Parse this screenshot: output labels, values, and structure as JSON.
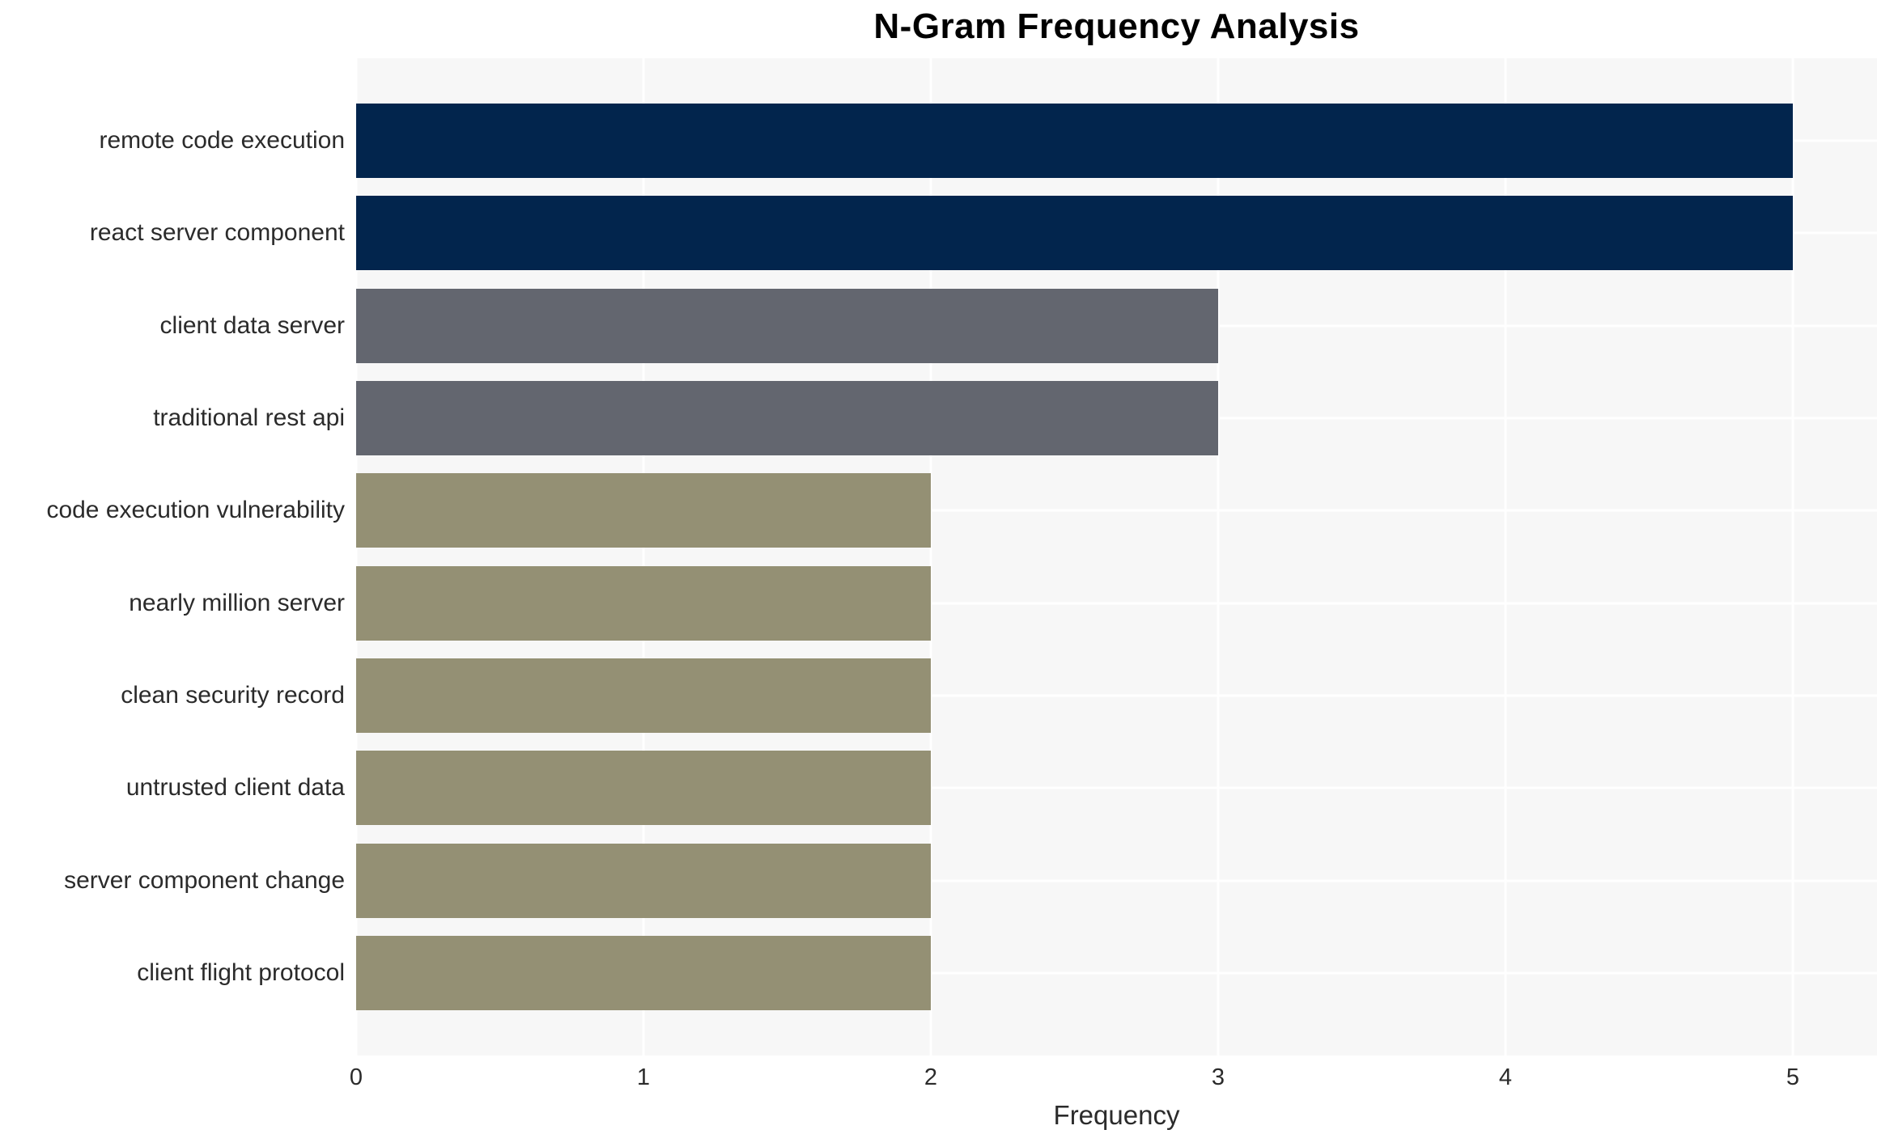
{
  "chart_data": {
    "type": "bar",
    "orientation": "horizontal",
    "title": "N-Gram Frequency Analysis",
    "xlabel": "Frequency",
    "ylabel": "",
    "categories": [
      "remote code execution",
      "react server component",
      "client data server",
      "traditional rest api",
      "code execution vulnerability",
      "nearly million server",
      "clean security record",
      "untrusted client data",
      "server component change",
      "client flight protocol"
    ],
    "values": [
      5,
      5,
      3,
      3,
      2,
      2,
      2,
      2,
      2,
      2
    ],
    "bar_colors": [
      "#02254d",
      "#02254d",
      "#63666f",
      "#63666f",
      "#949074",
      "#949074",
      "#949074",
      "#949074",
      "#949074",
      "#949074"
    ],
    "color_by_value": {
      "5": "#02254d",
      "3": "#63666f",
      "2": "#949074"
    },
    "xlim": [
      0,
      5
    ],
    "xticks": [
      "0",
      "1",
      "2",
      "3",
      "4",
      "5"
    ],
    "legend": "none",
    "grid": {
      "style": "white-on-gray",
      "panel_background": "#f7f7f7",
      "gridline_color": "#ffffff"
    },
    "text_color": "#2b2b2b",
    "title_color": "#000000",
    "page_background": "#ffffff"
  }
}
